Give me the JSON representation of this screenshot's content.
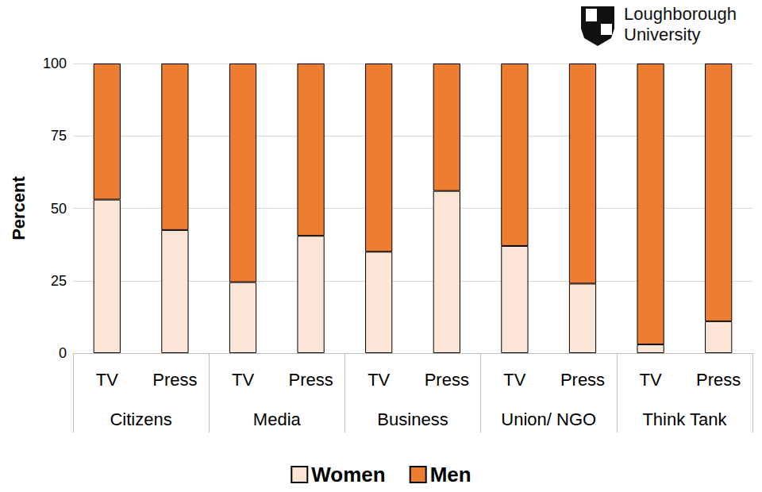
{
  "chart_data": {
    "type": "bar",
    "stacked": true,
    "y_label": "Percent",
    "logo_text": [
      "Loughborough",
      "University"
    ],
    "categories": [
      "TV",
      "Press",
      "TV",
      "Press",
      "TV",
      "Press",
      "TV",
      "Press",
      "TV",
      "Press"
    ],
    "category_groups": [
      "Citizens",
      "Media",
      "Business",
      "Union/ NGO",
      "Think Tank"
    ],
    "series": [
      {
        "name": "Women",
        "color": "#fbe5d6",
        "values": [
          53,
          42.5,
          24.5,
          40.5,
          35,
          56,
          37,
          24,
          3,
          11
        ]
      },
      {
        "name": "Men",
        "color": "#ed7d31",
        "values": [
          47,
          57.5,
          75.5,
          59.5,
          65,
          44,
          63,
          76,
          97,
          89
        ]
      }
    ],
    "ylim": [
      0,
      100
    ],
    "yticks": [
      0,
      25,
      50,
      75,
      100
    ],
    "grid": true,
    "legend": "bottom"
  }
}
